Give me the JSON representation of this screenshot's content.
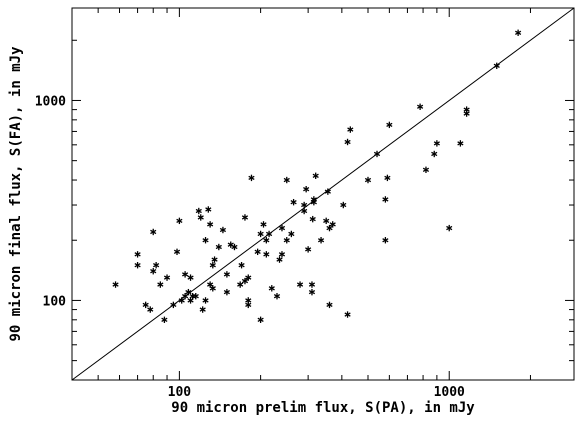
{
  "chart_data": {
    "type": "scatter",
    "title": "",
    "xlabel": "90 micron prelim flux, S(PA), in mJy",
    "ylabel": "90 micron final flux, S(FA), in mJy",
    "xscale": "log",
    "yscale": "log",
    "xlim": [
      40,
      2900
    ],
    "ylim": [
      40,
      2900
    ],
    "xticks": [
      100,
      1000
    ],
    "xtick_labels": [
      "100",
      "1000"
    ],
    "yticks": [
      100,
      1000
    ],
    "ytick_labels": [
      "100",
      "1000"
    ],
    "grid": false,
    "reference_line": {
      "type": "identity",
      "description": "y = x"
    },
    "marker": "asterisk",
    "x": [
      1800,
      1500,
      1160,
      1160,
      1100,
      1000,
      900,
      880,
      820,
      780,
      600,
      580,
      590,
      580,
      540,
      500,
      430,
      420,
      405,
      370,
      360,
      355,
      350,
      335,
      320,
      315,
      315,
      312,
      310,
      300,
      295,
      290,
      290,
      280,
      265,
      250,
      250,
      240,
      240,
      235,
      230,
      215,
      210,
      210,
      205,
      200,
      200,
      195,
      185,
      180,
      175,
      175,
      170,
      168,
      160,
      155,
      150,
      150,
      145,
      140,
      135,
      133,
      133,
      130,
      128,
      125,
      125,
      122,
      120,
      118,
      115,
      112,
      110,
      110,
      108,
      105,
      105,
      102,
      100,
      98,
      95,
      90,
      88,
      85,
      82,
      80,
      80,
      78,
      75,
      70,
      70,
      58,
      310,
      180,
      220,
      260,
      360,
      420,
      180,
      130
    ],
    "y": [
      2180,
      1490,
      900,
      860,
      610,
      230,
      610,
      540,
      450,
      930,
      755,
      320,
      410,
      200,
      540,
      400,
      715,
      620,
      300,
      240,
      230,
      350,
      250,
      200,
      420,
      320,
      310,
      255,
      120,
      180,
      360,
      280,
      300,
      120,
      310,
      400,
      200,
      230,
      170,
      160,
      105,
      215,
      200,
      170,
      240,
      215,
      80,
      175,
      410,
      95,
      260,
      125,
      150,
      120,
      185,
      190,
      110,
      135,
      225,
      185,
      160,
      115,
      150,
      240,
      285,
      200,
      100,
      90,
      260,
      280,
      105,
      105,
      100,
      130,
      110,
      105,
      135,
      100,
      250,
      175,
      95,
      130,
      80,
      120,
      150,
      140,
      220,
      90,
      95,
      170,
      150,
      120,
      110,
      130,
      115,
      215,
      95,
      85,
      100,
      120
    ]
  }
}
